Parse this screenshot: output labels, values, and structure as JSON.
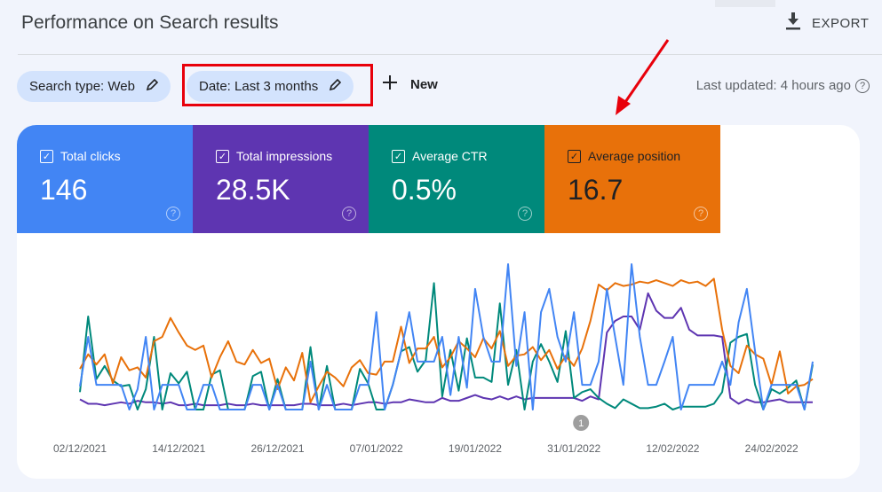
{
  "header": {
    "title": "Performance on Search results",
    "export_label": "EXPORT",
    "export_icon": "download-icon"
  },
  "filters": {
    "search_type": "Search type: Web",
    "date": "Date: Last 3 months",
    "new_label": "New",
    "last_updated": "Last updated: 4 hours ago"
  },
  "highlight_color": "#e8000b",
  "metrics": [
    {
      "label": "Total clicks",
      "value": "146",
      "color": "#4285f4",
      "checked": true
    },
    {
      "label": "Total impressions",
      "value": "28.5K",
      "color": "#5e35b1",
      "checked": true
    },
    {
      "label": "Average CTR",
      "value": "0.5%",
      "color": "#00897b",
      "checked": true
    },
    {
      "label": "Average position",
      "value": "16.7",
      "color": "#e8710a",
      "checked": true
    }
  ],
  "chart_data": {
    "type": "line",
    "xlabel": "",
    "ylabel": "",
    "x_ticks": [
      "02/12/2021",
      "14/12/2021",
      "26/12/2021",
      "07/01/2022",
      "19/01/2022",
      "31/01/2022",
      "12/02/2022",
      "24/02/2022"
    ],
    "annotation": "1",
    "grid": false,
    "series": [
      {
        "name": "Total clicks",
        "color": "#4285f4",
        "values": [
          16,
          50,
          17,
          17,
          17,
          17,
          0,
          14,
          50,
          0,
          17,
          17,
          17,
          0,
          0,
          17,
          17,
          0,
          0,
          0,
          0,
          17,
          17,
          0,
          17,
          0,
          0,
          0,
          33,
          0,
          17,
          0,
          0,
          0,
          17,
          17,
          67,
          0,
          17,
          40,
          67,
          33,
          33,
          33,
          50,
          10,
          50,
          15,
          83,
          50,
          33,
          33,
          100,
          30,
          67,
          0,
          67,
          83,
          50,
          33,
          67,
          17,
          17,
          33,
          83,
          50,
          17,
          100,
          50,
          17,
          17,
          33,
          50,
          0,
          17,
          17,
          17,
          17,
          33,
          17,
          60,
          83,
          40,
          0,
          17,
          17,
          17,
          17,
          0,
          33
        ]
      },
      {
        "name": "Total impressions",
        "color": "#5e35b1",
        "values": [
          7,
          4,
          4,
          3,
          4,
          5,
          4,
          6,
          5,
          5,
          4,
          5,
          3,
          3,
          4,
          3,
          3,
          3,
          4,
          3,
          3,
          4,
          3,
          3,
          3,
          3,
          3,
          4,
          4,
          3,
          3,
          3,
          4,
          3,
          4,
          5,
          5,
          4,
          5,
          5,
          7,
          6,
          5,
          5,
          8,
          6,
          6,
          8,
          10,
          8,
          7,
          9,
          7,
          9,
          7,
          8,
          8,
          8,
          8,
          8,
          8,
          6,
          9,
          7,
          53,
          61,
          64,
          64,
          55,
          80,
          68,
          63,
          63,
          70,
          55,
          51,
          51,
          51,
          50,
          8,
          4,
          7,
          5,
          5,
          6,
          7,
          5,
          5,
          5,
          5
        ]
      },
      {
        "name": "Average CTR",
        "color": "#00897b",
        "values": [
          12,
          64,
          21,
          30,
          20,
          16,
          17,
          0,
          14,
          50,
          0,
          25,
          18,
          26,
          0,
          0,
          24,
          27,
          0,
          0,
          0,
          23,
          26,
          0,
          21,
          0,
          0,
          0,
          43,
          0,
          30,
          0,
          0,
          0,
          28,
          18,
          0,
          0,
          17,
          40,
          43,
          26,
          34,
          87,
          9,
          41,
          13,
          49,
          22,
          22,
          19,
          73,
          17,
          41,
          0,
          33,
          45,
          33,
          19,
          54,
          8,
          12,
          14,
          8,
          4,
          1,
          7,
          4,
          1,
          1,
          2,
          4,
          0,
          2,
          2,
          2,
          2,
          4,
          12,
          46,
          50,
          52,
          17,
          0,
          14,
          11,
          15,
          20,
          0,
          31
        ]
      },
      {
        "name": "Average position",
        "color": "#e8710a",
        "values": [
          28,
          38,
          31,
          38,
          18,
          36,
          27,
          29,
          22,
          47,
          50,
          63,
          53,
          44,
          41,
          44,
          22,
          36,
          47,
          33,
          31,
          41,
          32,
          35,
          14,
          29,
          20,
          39,
          5,
          16,
          26,
          22,
          16,
          29,
          34,
          25,
          24,
          33,
          33,
          57,
          32,
          42,
          42,
          50,
          29,
          36,
          47,
          42,
          36,
          49,
          42,
          54,
          30,
          37,
          38,
          43,
          34,
          41,
          28,
          37,
          30,
          42,
          61,
          86,
          82,
          87,
          85,
          86,
          88,
          87,
          89,
          87,
          85,
          89,
          87,
          88,
          85,
          90,
          55,
          30,
          25,
          44,
          38,
          35,
          17,
          40,
          11,
          16,
          17,
          21
        ]
      }
    ]
  }
}
